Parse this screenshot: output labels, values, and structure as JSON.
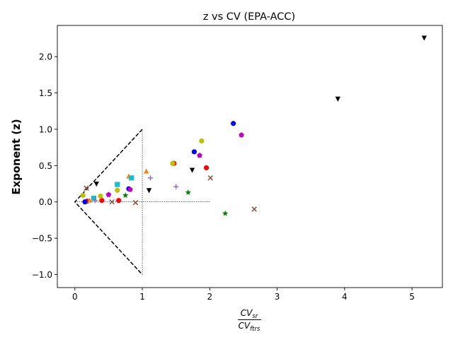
{
  "chart_data": {
    "type": "scatter",
    "title": "z vs CV (EPA-ACC)",
    "xlabel_main": "CV",
    "xlabel_num_sub": "sr",
    "xlabel_den_sub": "ftrs",
    "ylabel": "Exponent (z)",
    "xlim": [
      -0.26,
      5.45
    ],
    "ylim": [
      -1.18,
      2.43
    ],
    "xticks": [
      0,
      1,
      2,
      3,
      4,
      5
    ],
    "yticks": [
      -1.0,
      -0.5,
      0.0,
      0.5,
      1.0,
      1.5,
      2.0
    ],
    "grid": false,
    "reference_lines": {
      "triangle": [
        [
          0,
          0
        ],
        [
          1,
          1
        ],
        [
          1,
          -1
        ]
      ],
      "horizontal_dotted": {
        "y": 0,
        "x_from": 0,
        "x_to": 2
      },
      "vertical_dotted": {
        "x": 1,
        "y_from": -1,
        "y_to": 1
      }
    },
    "series": [
      {
        "marker": "circle",
        "color": "#ff0000",
        "points": [
          [
            0.18,
            0.01
          ],
          [
            0.4,
            0.02
          ],
          [
            0.65,
            0.02
          ],
          [
            1.47,
            0.53
          ],
          [
            1.95,
            0.47
          ]
        ]
      },
      {
        "marker": "circle",
        "color": "#0000ff",
        "points": [
          [
            0.15,
            0.0
          ],
          [
            0.8,
            0.18
          ],
          [
            1.77,
            0.69
          ],
          [
            2.35,
            1.08
          ]
        ]
      },
      {
        "marker": "pentagon",
        "color": "#bf00bf",
        "points": [
          [
            0.5,
            0.1
          ],
          [
            0.82,
            0.17
          ],
          [
            1.85,
            0.64
          ],
          [
            2.47,
            0.92
          ]
        ]
      },
      {
        "marker": "hexagon",
        "color": "#bfbf00",
        "points": [
          [
            0.12,
            0.09
          ],
          [
            0.38,
            0.08
          ],
          [
            0.63,
            0.16
          ],
          [
            1.45,
            0.53
          ],
          [
            1.88,
            0.84
          ]
        ]
      },
      {
        "marker": "triangle-down",
        "color": "#000000",
        "points": [
          [
            0.32,
            0.25
          ],
          [
            1.1,
            0.16
          ],
          [
            1.74,
            0.44
          ],
          [
            3.9,
            1.42
          ],
          [
            5.18,
            2.26
          ]
        ]
      },
      {
        "marker": "triangle-up",
        "color": "#ff7f0e",
        "points": [
          [
            0.22,
            0.02
          ],
          [
            0.8,
            0.35
          ],
          [
            1.06,
            0.42
          ]
        ]
      },
      {
        "marker": "square",
        "color": "#17becf",
        "points": [
          [
            0.28,
            0.05
          ],
          [
            0.63,
            0.24
          ],
          [
            0.84,
            0.33
          ]
        ]
      },
      {
        "marker": "x",
        "color": "#8c564b",
        "points": [
          [
            0.17,
            0.19
          ],
          [
            0.55,
            0.0
          ],
          [
            0.9,
            -0.01
          ],
          [
            2.01,
            0.33
          ],
          [
            2.66,
            -0.1
          ]
        ]
      },
      {
        "marker": "plus",
        "color": "#9467bd",
        "points": [
          [
            0.3,
            0.02
          ],
          [
            1.12,
            0.33
          ],
          [
            1.5,
            0.21
          ]
        ]
      },
      {
        "marker": "star",
        "color": "#008000",
        "points": [
          [
            0.75,
            0.09
          ],
          [
            1.68,
            0.13
          ],
          [
            2.23,
            -0.16
          ]
        ]
      }
    ]
  }
}
